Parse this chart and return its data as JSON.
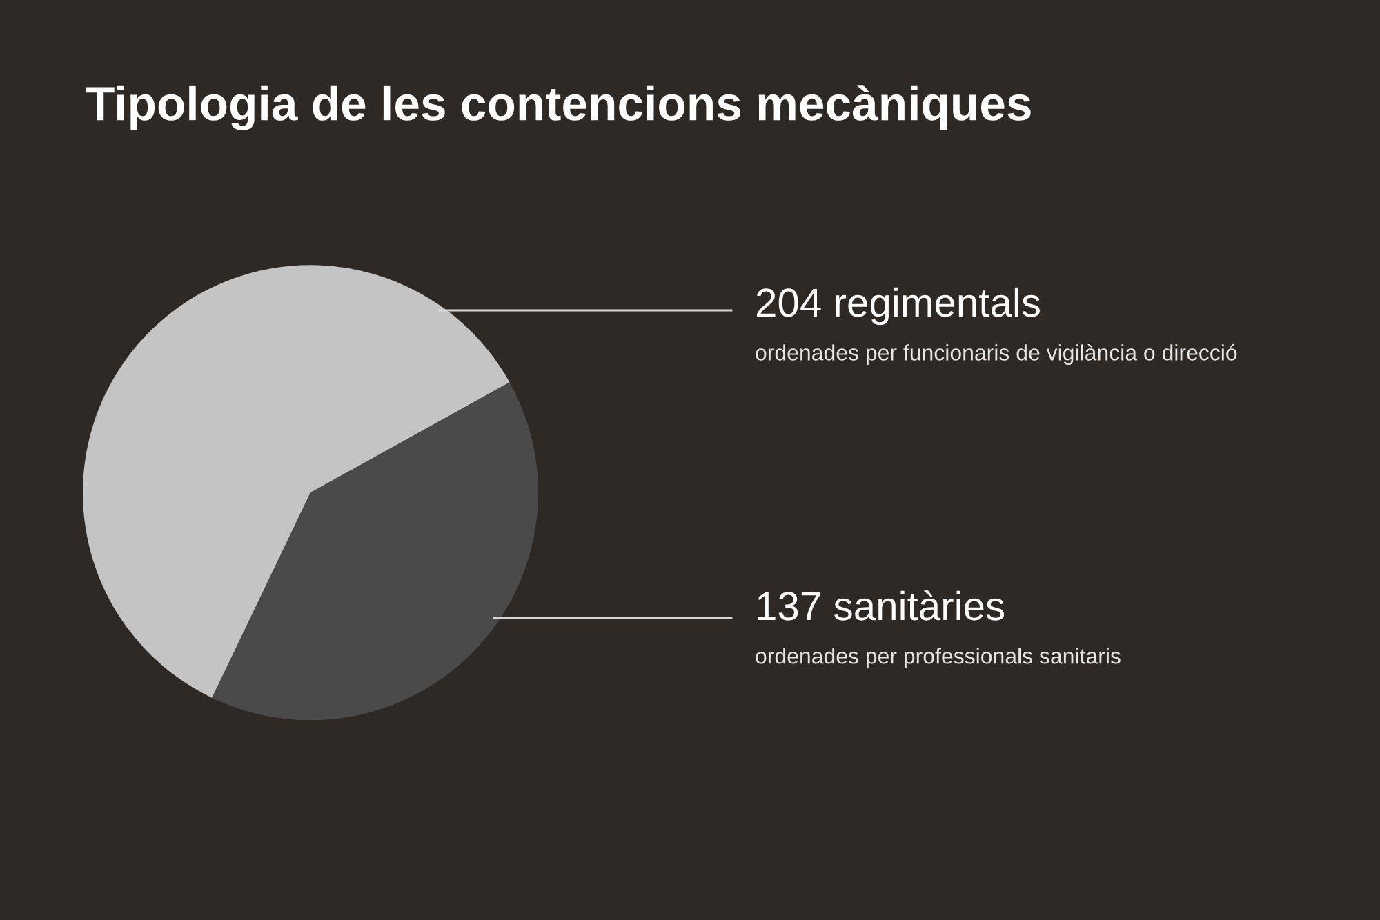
{
  "chart_data": {
    "type": "pie",
    "title": "Tipologia de les contencions mecàniques",
    "categories": [
      "204 regimentals",
      "137 sanitàries"
    ],
    "values": [
      204,
      137
    ],
    "colors": [
      "#c4c4c4",
      "#4a4a4a"
    ],
    "annotations": [
      "ordenades per funcionaris de vigilància o direcció",
      "ordenades per professionals sanitaris"
    ],
    "legend": false
  }
}
